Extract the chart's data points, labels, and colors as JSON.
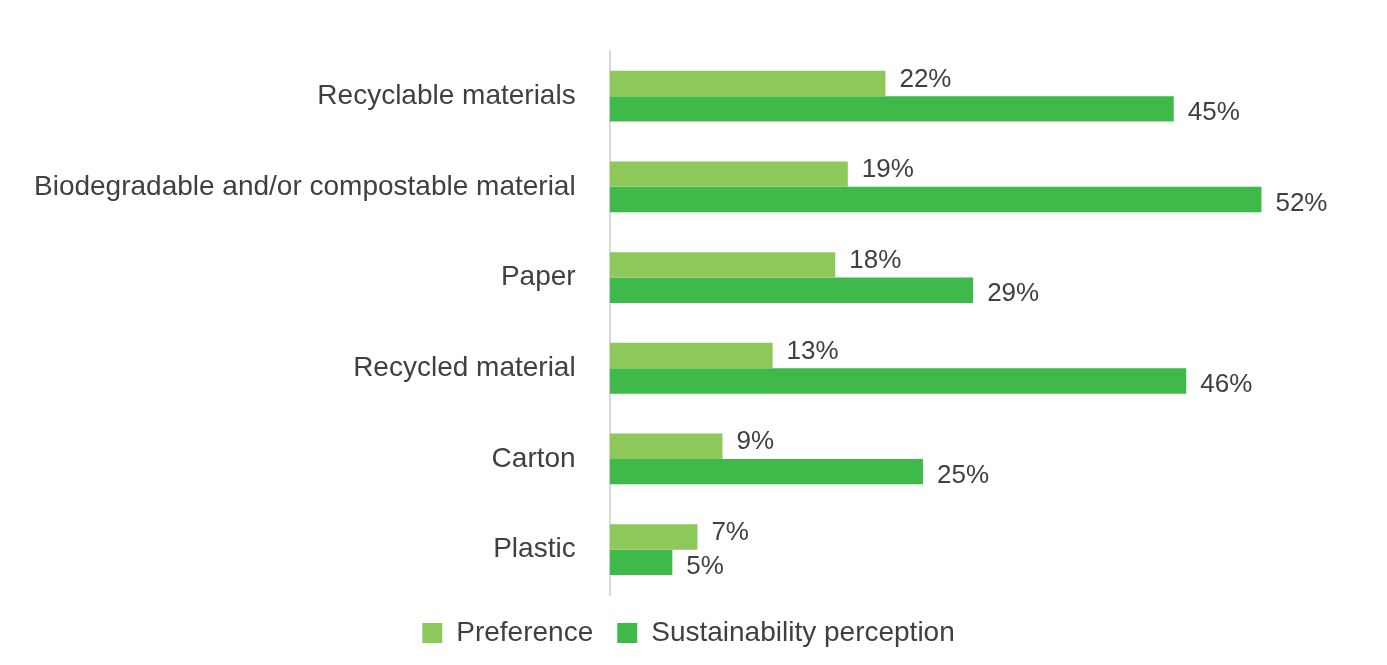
{
  "chart_data": {
    "type": "bar",
    "orientation": "horizontal",
    "categories": [
      "Recyclable materials",
      "Biodegradable and/or compostable material",
      "Paper",
      "Recycled material",
      "Carton",
      "Plastic"
    ],
    "series": [
      {
        "name": "Preference",
        "color": "#8cc95a",
        "values": [
          22,
          19,
          18,
          13,
          9,
          7
        ],
        "value_labels": [
          "22%",
          "19%",
          "18%",
          "13%",
          "9%",
          "7%"
        ]
      },
      {
        "name": "Sustainability perception",
        "color": "#3fb94a",
        "values": [
          45,
          52,
          29,
          46,
          25,
          5
        ],
        "value_labels": [
          "45%",
          "52%",
          "29%",
          "46%",
          "25%",
          "5%"
        ]
      }
    ],
    "grid": false,
    "legend": "bottom",
    "tick_labels": "y"
  }
}
